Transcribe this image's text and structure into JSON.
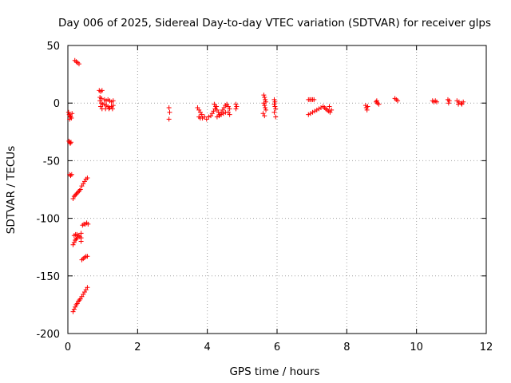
{
  "chart_data": {
    "type": "scatter",
    "title": "Day 006 of 2025, Sidereal Day-to-day VTEC variation (SDTVAR) for receiver glps",
    "xlabel": "GPS time / hours",
    "ylabel": "SDTVAR / TECUs",
    "xlim": [
      0,
      12
    ],
    "ylim": [
      -200,
      50
    ],
    "xticks": [
      0,
      2,
      4,
      6,
      8,
      10,
      12
    ],
    "yticks": [
      50,
      0,
      -50,
      -100,
      -150,
      -200
    ],
    "xtick_labels": [
      "0",
      "2",
      "4",
      "6",
      "8",
      "10",
      "12"
    ],
    "ytick_labels": [
      "50",
      "0",
      "-50",
      "-100",
      "-150",
      "-200"
    ],
    "grid": true,
    "marker": "plus",
    "color": "#ff0000",
    "series": [
      {
        "name": "SDTVAR",
        "points": [
          [
            0.02,
            -8
          ],
          [
            0.04,
            -10
          ],
          [
            0.06,
            -11
          ],
          [
            0.08,
            -12
          ],
          [
            0.1,
            -13
          ],
          [
            0.05,
            -14
          ],
          [
            0.12,
            -9
          ],
          [
            0.03,
            -33
          ],
          [
            0.05,
            -34
          ],
          [
            0.07,
            -35
          ],
          [
            0.09,
            -34
          ],
          [
            0.05,
            -62
          ],
          [
            0.08,
            -63
          ],
          [
            0.11,
            -62
          ],
          [
            0.2,
            37
          ],
          [
            0.24,
            36
          ],
          [
            0.28,
            35
          ],
          [
            0.32,
            34
          ],
          [
            0.15,
            -83
          ],
          [
            0.18,
            -81
          ],
          [
            0.21,
            -80
          ],
          [
            0.24,
            -79
          ],
          [
            0.27,
            -78
          ],
          [
            0.3,
            -77
          ],
          [
            0.33,
            -76
          ],
          [
            0.36,
            -75
          ],
          [
            0.4,
            -72
          ],
          [
            0.44,
            -70
          ],
          [
            0.48,
            -68
          ],
          [
            0.52,
            -66
          ],
          [
            0.56,
            -65
          ],
          [
            0.15,
            -123
          ],
          [
            0.18,
            -121
          ],
          [
            0.21,
            -119
          ],
          [
            0.24,
            -118
          ],
          [
            0.27,
            -117
          ],
          [
            0.18,
            -115
          ],
          [
            0.22,
            -114
          ],
          [
            0.26,
            -114
          ],
          [
            0.3,
            -115
          ],
          [
            0.34,
            -116
          ],
          [
            0.38,
            -113
          ],
          [
            0.38,
            -117
          ],
          [
            0.38,
            -120
          ],
          [
            0.42,
            -106
          ],
          [
            0.46,
            -105
          ],
          [
            0.5,
            -105
          ],
          [
            0.54,
            -104
          ],
          [
            0.58,
            -105
          ],
          [
            0.4,
            -136
          ],
          [
            0.44,
            -135
          ],
          [
            0.48,
            -134
          ],
          [
            0.52,
            -133
          ],
          [
            0.56,
            -133
          ],
          [
            0.15,
            -181
          ],
          [
            0.18,
            -179
          ],
          [
            0.21,
            -177
          ],
          [
            0.24,
            -175
          ],
          [
            0.27,
            -174
          ],
          [
            0.3,
            -172
          ],
          [
            0.33,
            -171
          ],
          [
            0.36,
            -170
          ],
          [
            0.4,
            -168
          ],
          [
            0.44,
            -166
          ],
          [
            0.48,
            -164
          ],
          [
            0.52,
            -162
          ],
          [
            0.56,
            -160
          ],
          [
            0.9,
            11
          ],
          [
            0.94,
            10
          ],
          [
            0.98,
            11
          ],
          [
            0.92,
            5
          ],
          [
            0.96,
            4
          ],
          [
            0.92,
            2
          ],
          [
            0.96,
            0
          ],
          [
            1.0,
            -1
          ],
          [
            0.94,
            -3
          ],
          [
            0.98,
            -5
          ],
          [
            1.05,
            3
          ],
          [
            1.1,
            2
          ],
          [
            1.15,
            3
          ],
          [
            1.2,
            2
          ],
          [
            1.25,
            1
          ],
          [
            1.3,
            2
          ],
          [
            1.05,
            -1
          ],
          [
            1.1,
            -2
          ],
          [
            1.15,
            -3
          ],
          [
            1.2,
            -4
          ],
          [
            1.25,
            -3
          ],
          [
            1.3,
            -2
          ],
          [
            1.08,
            -5
          ],
          [
            1.18,
            -5
          ],
          [
            1.28,
            -5
          ],
          [
            2.9,
            -4
          ],
          [
            2.92,
            -8
          ],
          [
            2.9,
            -14
          ],
          [
            3.72,
            -4
          ],
          [
            3.76,
            -6
          ],
          [
            3.8,
            -8
          ],
          [
            3.84,
            -10
          ],
          [
            3.76,
            -12
          ],
          [
            3.8,
            -13
          ],
          [
            3.86,
            -13
          ],
          [
            3.92,
            -12
          ],
          [
            3.98,
            -14
          ],
          [
            4.04,
            -12
          ],
          [
            4.1,
            -11
          ],
          [
            4.14,
            -9
          ],
          [
            4.18,
            -7
          ],
          [
            4.22,
            -5
          ],
          [
            4.26,
            -3
          ],
          [
            4.2,
            -1
          ],
          [
            4.24,
            -3
          ],
          [
            4.28,
            -6
          ],
          [
            4.32,
            -8
          ],
          [
            4.36,
            -10
          ],
          [
            4.4,
            -8
          ],
          [
            4.44,
            -6
          ],
          [
            4.48,
            -4
          ],
          [
            4.52,
            -2
          ],
          [
            4.56,
            -1
          ],
          [
            4.6,
            -3
          ],
          [
            4.64,
            -5
          ],
          [
            4.28,
            -12
          ],
          [
            4.34,
            -11
          ],
          [
            4.4,
            -10
          ],
          [
            4.46,
            -9
          ],
          [
            4.52,
            -8
          ],
          [
            4.6,
            -8
          ],
          [
            4.64,
            -10
          ],
          [
            4.82,
            -1
          ],
          [
            4.84,
            -3
          ],
          [
            4.82,
            -5
          ],
          [
            5.62,
            7
          ],
          [
            5.64,
            5
          ],
          [
            5.66,
            3
          ],
          [
            5.68,
            1
          ],
          [
            5.62,
            0
          ],
          [
            5.64,
            -2
          ],
          [
            5.66,
            -4
          ],
          [
            5.68,
            -6
          ],
          [
            5.6,
            -9
          ],
          [
            5.64,
            -11
          ],
          [
            5.92,
            3
          ],
          [
            5.94,
            1
          ],
          [
            5.92,
            -1
          ],
          [
            5.94,
            -3
          ],
          [
            5.96,
            -5
          ],
          [
            5.92,
            -8
          ],
          [
            5.96,
            -12
          ],
          [
            6.9,
            3
          ],
          [
            6.94,
            3
          ],
          [
            6.98,
            3
          ],
          [
            7.02,
            3
          ],
          [
            7.06,
            3
          ],
          [
            6.9,
            -10
          ],
          [
            6.96,
            -9
          ],
          [
            7.02,
            -8
          ],
          [
            7.08,
            -7
          ],
          [
            7.14,
            -6
          ],
          [
            7.2,
            -5
          ],
          [
            7.26,
            -4
          ],
          [
            7.32,
            -3
          ],
          [
            7.36,
            -4
          ],
          [
            7.4,
            -5
          ],
          [
            7.44,
            -6
          ],
          [
            7.48,
            -7
          ],
          [
            7.52,
            -8
          ],
          [
            7.56,
            -6
          ],
          [
            7.5,
            -3
          ],
          [
            8.54,
            -2
          ],
          [
            8.56,
            -4
          ],
          [
            8.58,
            -6
          ],
          [
            8.6,
            -3
          ],
          [
            8.84,
            1
          ],
          [
            8.88,
            0
          ],
          [
            8.92,
            -1
          ],
          [
            8.86,
            2
          ],
          [
            9.38,
            4
          ],
          [
            9.42,
            3
          ],
          [
            9.46,
            2
          ],
          [
            10.46,
            2
          ],
          [
            10.5,
            1
          ],
          [
            10.54,
            2
          ],
          [
            10.58,
            1
          ],
          [
            10.9,
            3
          ],
          [
            10.94,
            2
          ],
          [
            10.92,
            0
          ],
          [
            11.16,
            2
          ],
          [
            11.22,
            1
          ],
          [
            11.28,
            0
          ],
          [
            11.34,
            1
          ],
          [
            11.2,
            -1
          ],
          [
            11.3,
            -1
          ]
        ]
      }
    ]
  }
}
